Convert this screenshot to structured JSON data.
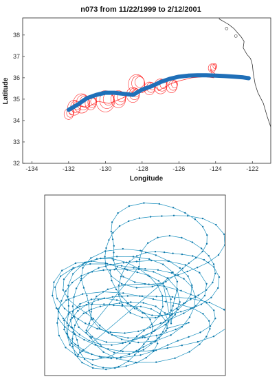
{
  "figure": {
    "title": "n073  from 11/22/1999 to 2/12/2001"
  },
  "chart_data": [
    {
      "type": "line",
      "title": "n073  from 11/22/1999 to 2/12/2001",
      "xlabel": "Longitude",
      "ylabel": "Latitude",
      "xlim": [
        -134.5,
        -121
      ],
      "ylim": [
        32,
        38.8
      ],
      "xticks": [
        -134,
        -132,
        -130,
        -128,
        -126,
        -124,
        -122
      ],
      "yticks": [
        32,
        33,
        34,
        35,
        36,
        37,
        38
      ],
      "grid": false,
      "colors": {
        "track": "#ff2a2a",
        "smoothed": "#1f6fb8",
        "coast": "#333333"
      },
      "series": [
        {
          "style": "thin red raw float trajectory",
          "x": [
            -122.3,
            -122.9,
            -123.5,
            -124.0,
            -124.3,
            -124.1,
            -124.6,
            -125.3,
            -126.0,
            -126.5,
            -126.8,
            -127.1,
            -127.3,
            -127.6,
            -128.0,
            -128.3,
            -128.7,
            -129.2,
            -129.8,
            -130.4,
            -131.0,
            -131.5,
            -131.9,
            -132.0
          ],
          "y": [
            36.05,
            36.1,
            36.15,
            36.15,
            36.4,
            36.0,
            36.05,
            36.0,
            35.85,
            35.7,
            35.55,
            35.4,
            35.6,
            35.5,
            35.3,
            35.5,
            35.2,
            35.0,
            34.8,
            34.9,
            34.6,
            34.7,
            34.5,
            34.5
          ]
        },
        {
          "style": "thick blue smoothed track",
          "x": [
            -132.0,
            -131.5,
            -131.0,
            -130.5,
            -130.0,
            -129.5,
            -129.0,
            -128.5,
            -128.3,
            -128.0,
            -127.5,
            -127.0,
            -126.5,
            -126.0,
            -125.5,
            -125.0,
            -124.5,
            -124.0,
            -123.5,
            -123.0,
            -122.5,
            -122.2
          ],
          "y": [
            34.5,
            34.75,
            35.05,
            35.2,
            35.3,
            35.3,
            35.25,
            35.2,
            35.3,
            35.45,
            35.6,
            35.8,
            35.95,
            36.05,
            36.1,
            36.12,
            36.12,
            36.1,
            36.08,
            36.05,
            36.02,
            35.98
          ]
        }
      ],
      "loops": [
        {
          "x": -131.3,
          "y": 34.8,
          "r": 0.45
        },
        {
          "x": -131.7,
          "y": 34.6,
          "r": 0.35
        },
        {
          "x": -130.8,
          "y": 34.8,
          "r": 0.3
        },
        {
          "x": -130.0,
          "y": 34.9,
          "r": 0.5
        },
        {
          "x": -129.3,
          "y": 35.0,
          "r": 0.4
        },
        {
          "x": -128.3,
          "y": 35.7,
          "r": 0.45
        },
        {
          "x": -128.5,
          "y": 35.2,
          "r": 0.35
        },
        {
          "x": -127.6,
          "y": 35.5,
          "r": 0.3
        },
        {
          "x": -127.0,
          "y": 35.6,
          "r": 0.35
        },
        {
          "x": -126.4,
          "y": 35.6,
          "r": 0.3
        },
        {
          "x": -132.0,
          "y": 34.3,
          "r": 0.25
        },
        {
          "x": -124.2,
          "y": 36.45,
          "r": 0.2
        }
      ],
      "coastline": {
        "x": [
          -121.0,
          -121.2,
          -121.4,
          -121.7,
          -121.85,
          -121.95,
          -122.0,
          -122.1,
          -122.3,
          -122.5,
          -122.45,
          -122.6,
          -122.7,
          -122.85,
          -123.0,
          -123.3,
          -123.5,
          -123.7,
          -123.8,
          -123.8
        ],
        "y": [
          33.7,
          34.2,
          34.8,
          35.3,
          35.7,
          36.2,
          36.6,
          36.9,
          37.1,
          37.4,
          37.7,
          37.9,
          38.0,
          38.15,
          38.3,
          38.5,
          38.6,
          38.7,
          38.75,
          38.8
        ]
      }
    },
    {
      "type": "line",
      "style": "teal line with dot markers (float trajectory in drifting frame)",
      "title": "",
      "xlabel": "",
      "ylabel": "",
      "axes_visible": false,
      "colors": {
        "line": "#1a90bf",
        "marker": "#0f76a8"
      },
      "generator": {
        "loops": [
          {
            "cx": 0.35,
            "cy": 0.78,
            "rx": 0.25,
            "ry": 0.17,
            "turns": 3,
            "drift_x": 0.06,
            "drift_y": -0.04
          },
          {
            "cx": 0.5,
            "cy": 0.55,
            "rx": 0.35,
            "ry": 0.22,
            "turns": 4,
            "drift_x": -0.05,
            "drift_y": 0.03
          },
          {
            "cx": 0.6,
            "cy": 0.27,
            "rx": 0.3,
            "ry": 0.2,
            "turns": 2,
            "drift_x": 0.04,
            "drift_y": 0.02
          },
          {
            "cx": 0.35,
            "cy": 0.65,
            "rx": 0.3,
            "ry": 0.25,
            "turns": 3,
            "drift_x": 0.05,
            "drift_y": -0.06
          },
          {
            "cx": 0.55,
            "cy": 0.7,
            "rx": 0.4,
            "ry": 0.18,
            "turns": 3,
            "drift_x": -0.04,
            "drift_y": 0.02
          },
          {
            "cx": 0.7,
            "cy": 0.45,
            "rx": 0.25,
            "ry": 0.2,
            "turns": 2,
            "drift_x": -0.06,
            "drift_y": 0.05
          }
        ],
        "points_per_turn": 26
      }
    }
  ]
}
